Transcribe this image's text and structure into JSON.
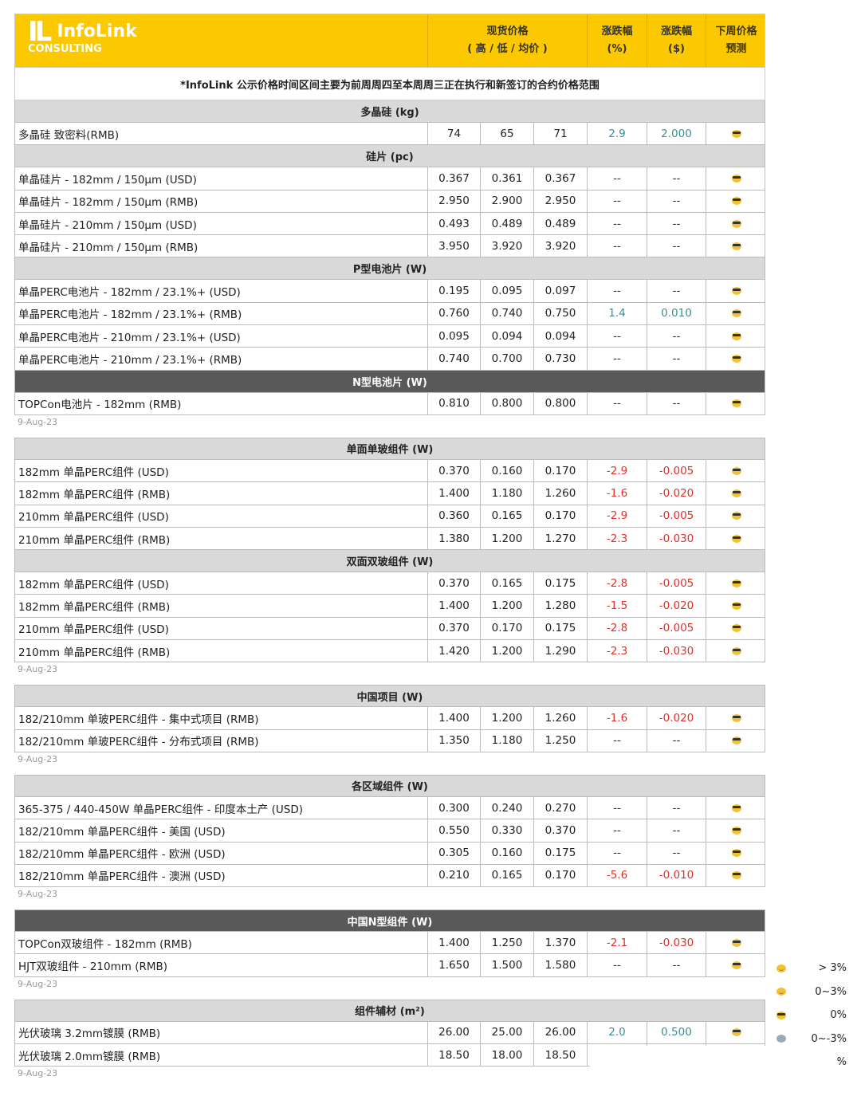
{
  "header": {
    "logo_text": "InfoLink",
    "logo_sub": "CONSULTING",
    "price_title": "现货价格",
    "price_sub": "( 高 / 低 / 均价 )",
    "pct_title": "涨跌幅",
    "pct_unit": "(%)",
    "usd_title": "涨跌幅",
    "usd_unit": "($)",
    "forecast_title": "下周价格",
    "forecast_sub": "预测"
  },
  "note": "*InfoLink 公示价格时间区间主要为前周周四至本周周三正在执行和新签订的合约价格范围",
  "colors": {
    "header": "#fcc800",
    "positive": "#3a8f96",
    "negative": "#e0302a",
    "section": "#d9d9d9",
    "section_dark": "#595959"
  },
  "blocks": [
    {
      "sections": [
        {
          "title": "多晶硅 (kg)",
          "dark": false,
          "rows": [
            [
              "多晶硅 致密料(RMB)",
              "74",
              "65",
              "71",
              "2.9",
              "2.000",
              "cool"
            ]
          ]
        },
        {
          "title": "硅片 (pc)",
          "dark": false,
          "rows": [
            [
              "单晶硅片 - 182mm / 150μm (USD)",
              "0.367",
              "0.361",
              "0.367",
              "--",
              "--",
              "cool"
            ],
            [
              "单晶硅片 - 182mm / 150μm (RMB)",
              "2.950",
              "2.900",
              "2.950",
              "--",
              "--",
              "cool"
            ],
            [
              "单晶硅片 - 210mm / 150μm (USD)",
              "0.493",
              "0.489",
              "0.489",
              "--",
              "--",
              "cool"
            ],
            [
              "单晶硅片 - 210mm / 150μm (RMB)",
              "3.950",
              "3.920",
              "3.920",
              "--",
              "--",
              "cool"
            ]
          ]
        },
        {
          "title": "P型电池片 (W)",
          "dark": false,
          "rows": [
            [
              "单晶PERC电池片 - 182mm / 23.1%+ (USD)",
              "0.195",
              "0.095",
              "0.097",
              "--",
              "--",
              "cool"
            ],
            [
              "单晶PERC电池片 - 182mm / 23.1%+ (RMB)",
              "0.760",
              "0.740",
              "0.750",
              "1.4",
              "0.010",
              "cool"
            ],
            [
              "单晶PERC电池片 - 210mm / 23.1%+ (USD)",
              "0.095",
              "0.094",
              "0.094",
              "--",
              "--",
              "cool"
            ],
            [
              "单晶PERC电池片 - 210mm / 23.1%+ (RMB)",
              "0.740",
              "0.700",
              "0.730",
              "--",
              "--",
              "cool"
            ]
          ]
        },
        {
          "title": "N型电池片 (W)",
          "dark": true,
          "rows": [
            [
              "TOPCon电池片 - 182mm (RMB)",
              "0.810",
              "0.800",
              "0.800",
              "--",
              "--",
              "cool"
            ]
          ]
        }
      ],
      "date": "9-Aug-23"
    },
    {
      "sections": [
        {
          "title": "单面单玻组件 (W)",
          "dark": false,
          "rows": [
            [
              "182mm 单晶PERC组件 (USD)",
              "0.370",
              "0.160",
              "0.170",
              "-2.9",
              "-0.005",
              "cool"
            ],
            [
              "182mm 单晶PERC组件 (RMB)",
              "1.400",
              "1.180",
              "1.260",
              "-1.6",
              "-0.020",
              "cool"
            ],
            [
              "210mm 单晶PERC组件 (USD)",
              "0.360",
              "0.165",
              "0.170",
              "-2.9",
              "-0.005",
              "cool"
            ],
            [
              "210mm 单晶PERC组件 (RMB)",
              "1.380",
              "1.200",
              "1.270",
              "-2.3",
              "-0.030",
              "cool"
            ]
          ]
        },
        {
          "title": "双面双玻组件 (W)",
          "dark": false,
          "rows": [
            [
              "182mm 单晶PERC组件 (USD)",
              "0.370",
              "0.165",
              "0.175",
              "-2.8",
              "-0.005",
              "cool"
            ],
            [
              "182mm 单晶PERC组件 (RMB)",
              "1.400",
              "1.200",
              "1.280",
              "-1.5",
              "-0.020",
              "cool"
            ],
            [
              "210mm 单晶PERC组件 (USD)",
              "0.370",
              "0.170",
              "0.175",
              "-2.8",
              "-0.005",
              "cool"
            ],
            [
              "210mm 单晶PERC组件 (RMB)",
              "1.420",
              "1.200",
              "1.290",
              "-2.3",
              "-0.030",
              "cool"
            ]
          ]
        }
      ],
      "date": "9-Aug-23"
    },
    {
      "sections": [
        {
          "title": "中国项目 (W)",
          "dark": false,
          "rows": [
            [
              "182/210mm 单玻PERC组件 - 集中式项目 (RMB)",
              "1.400",
              "1.200",
              "1.260",
              "-1.6",
              "-0.020",
              "cool"
            ],
            [
              "182/210mm 单玻PERC组件 - 分布式项目 (RMB)",
              "1.350",
              "1.180",
              "1.250",
              "--",
              "--",
              "cool"
            ]
          ]
        }
      ],
      "date": "9-Aug-23"
    },
    {
      "sections": [
        {
          "title": "各区域组件 (W)",
          "dark": false,
          "rows": [
            [
              "365-375 / 440-450W 单晶PERC组件 - 印度本土产 (USD)",
              "0.300",
              "0.240",
              "0.270",
              "--",
              "--",
              "cool"
            ],
            [
              "182/210mm 单晶PERC组件 - 美国 (USD)",
              "0.550",
              "0.330",
              "0.370",
              "--",
              "--",
              "cool"
            ],
            [
              "182/210mm 单晶PERC组件 - 欧洲 (USD)",
              "0.305",
              "0.160",
              "0.175",
              "--",
              "--",
              "cool"
            ],
            [
              "182/210mm 单晶PERC组件 - 澳洲 (USD)",
              "0.210",
              "0.165",
              "0.170",
              "-5.6",
              "-0.010",
              "cool"
            ]
          ]
        }
      ],
      "date": "9-Aug-23"
    },
    {
      "sections": [
        {
          "title": "中国N型组件 (W)",
          "dark": true,
          "rows": [
            [
              "TOPCon双玻组件 - 182mm (RMB)",
              "1.400",
              "1.250",
              "1.370",
              "-2.1",
              "-0.030",
              "cool"
            ],
            [
              "HJT双玻组件 - 210mm (RMB)",
              "1.650",
              "1.500",
              "1.580",
              "--",
              "--",
              "cool"
            ]
          ]
        }
      ],
      "date": "9-Aug-23"
    },
    {
      "sections": [
        {
          "title": "组件辅材 (m²)",
          "dark": false,
          "rows": [
            [
              "光伏玻璃 3.2mm镀膜 (RMB)",
              "26.00",
              "25.00",
              "26.00",
              "2.0",
              "0.500",
              "cool"
            ],
            [
              "光伏玻璃 2.0mm镀膜 (RMB)",
              "18.50",
              "18.00",
              "18.50",
              "",
              "",
              ""
            ]
          ]
        }
      ],
      "date": "9-Aug-23"
    }
  ],
  "legend": [
    {
      "icon": "smile",
      "label": "> 3%"
    },
    {
      "icon": "smile",
      "label": "0~3%"
    },
    {
      "icon": "cool",
      "label": "0%"
    },
    {
      "icon": "scream",
      "label": "0~-3%"
    },
    {
      "icon": "",
      "label": "%"
    }
  ]
}
